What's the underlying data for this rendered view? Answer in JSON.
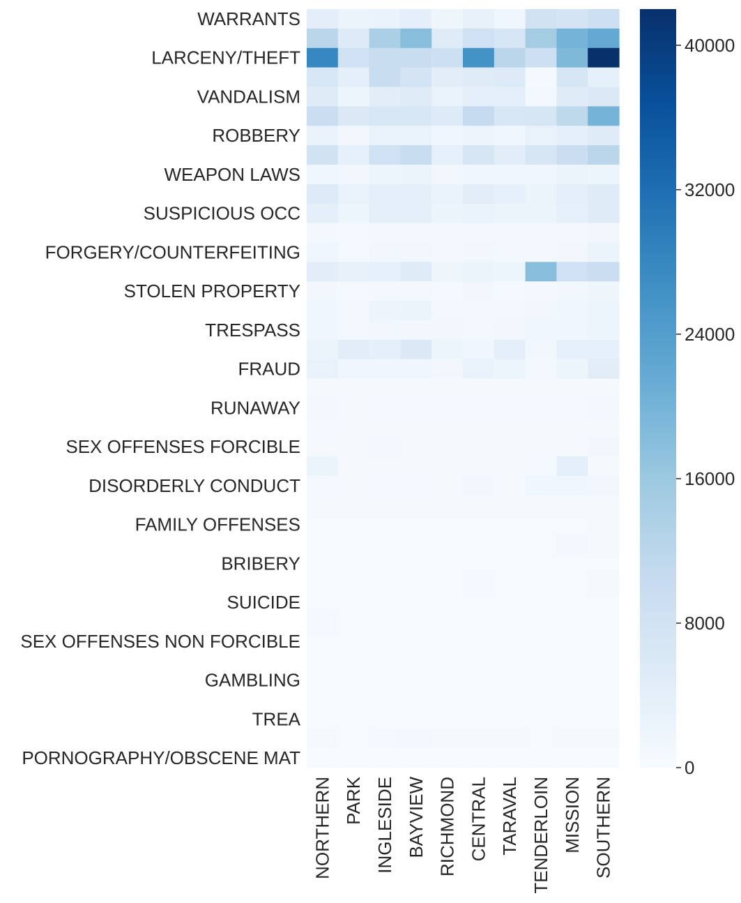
{
  "chart_data": {
    "type": "heatmap",
    "title": "",
    "xlabel": "",
    "ylabel": "",
    "colormap": "Blues",
    "colorbar": {
      "min": 0,
      "max": 42000,
      "ticks": [
        0,
        8000,
        16000,
        24000,
        32000,
        40000
      ],
      "tick_labels": [
        "0",
        "8000",
        "16000",
        "24000",
        "32000",
        "40000"
      ]
    },
    "x_labels": [
      "NORTHERN",
      "PARK",
      "INGLESIDE",
      "BAYVIEW",
      "RICHMOND",
      "CENTRAL",
      "TARAVAL",
      "TENDERLOIN",
      "MISSION",
      "SOUTHERN"
    ],
    "y_labels": [
      "WARRANTS",
      "",
      "LARCENY/THEFT",
      "",
      "VANDALISM",
      "",
      "ROBBERY",
      "",
      "WEAPON LAWS",
      "",
      "SUSPICIOUS OCC",
      "",
      "FORGERY/COUNTERFEITING",
      "",
      "STOLEN PROPERTY",
      "",
      "TRESPASS",
      "",
      "FRAUD",
      "",
      "RUNAWAY",
      "",
      "SEX OFFENSES FORCIBLE",
      "",
      "DISORDERLY CONDUCT",
      "",
      "FAMILY OFFENSES",
      "",
      "BRIBERY",
      "",
      "SUICIDE",
      "",
      "SEX OFFENSES NON FORCIBLE",
      "",
      "GAMBLING",
      "",
      "TREA",
      "",
      "PORNOGRAPHY/OBSCENE MAT"
    ],
    "values": [
      [
        4200,
        2500,
        2800,
        3800,
        1800,
        3200,
        1500,
        8000,
        7500,
        9000
      ],
      [
        12000,
        5500,
        14000,
        18000,
        5000,
        8500,
        7000,
        15000,
        20000,
        22000
      ],
      [
        28000,
        8500,
        10000,
        10000,
        9000,
        26000,
        12000,
        9000,
        19000,
        42000
      ],
      [
        6500,
        4000,
        10000,
        7500,
        4500,
        5000,
        5500,
        800,
        7000,
        3500
      ],
      [
        5000,
        2000,
        4500,
        5000,
        3000,
        4000,
        4000,
        1000,
        5000,
        6000
      ],
      [
        9500,
        6000,
        6500,
        6500,
        5500,
        10500,
        6500,
        7000,
        11500,
        20000
      ],
      [
        3000,
        1200,
        3000,
        3000,
        1500,
        2200,
        1500,
        3000,
        4000,
        5000
      ],
      [
        8000,
        3500,
        8500,
        10000,
        3500,
        7000,
        4500,
        7000,
        9500,
        12000
      ],
      [
        1500,
        1200,
        2000,
        2500,
        1200,
        1500,
        1500,
        1500,
        2500,
        2000
      ],
      [
        5500,
        3000,
        4000,
        4000,
        3000,
        4500,
        3500,
        2500,
        4000,
        5000
      ],
      [
        4000,
        2000,
        4000,
        4000,
        2500,
        3000,
        2500,
        2500,
        3500,
        5000
      ],
      [
        1000,
        800,
        1000,
        1000,
        1000,
        1000,
        900,
        900,
        1000,
        1200
      ],
      [
        1500,
        800,
        1200,
        1200,
        900,
        1200,
        900,
        900,
        1200,
        2500
      ],
      [
        4500,
        3200,
        3500,
        5000,
        1800,
        2500,
        2000,
        18000,
        8500,
        9500
      ],
      [
        1200,
        800,
        1000,
        1000,
        800,
        1200,
        800,
        900,
        1200,
        1800
      ],
      [
        1500,
        1000,
        2200,
        2500,
        1000,
        1000,
        900,
        1200,
        1500,
        2000
      ],
      [
        1500,
        1000,
        1200,
        1200,
        1300,
        1000,
        1200,
        1500,
        1500,
        2000
      ],
      [
        2500,
        4500,
        3800,
        6000,
        2000,
        1500,
        4000,
        1200,
        3500,
        3500
      ],
      [
        3000,
        1500,
        1500,
        1500,
        1200,
        3000,
        2000,
        1000,
        2000,
        4500
      ],
      [
        700,
        500,
        700,
        700,
        500,
        700,
        500,
        500,
        700,
        700
      ],
      [
        1000,
        700,
        800,
        800,
        800,
        800,
        800,
        800,
        800,
        1000
      ],
      [
        800,
        500,
        600,
        600,
        500,
        500,
        500,
        500,
        500,
        500
      ],
      [
        700,
        500,
        1000,
        700,
        500,
        600,
        500,
        600,
        700,
        1200
      ],
      [
        2500,
        500,
        500,
        500,
        500,
        500,
        500,
        800,
        4000,
        700
      ],
      [
        800,
        500,
        800,
        800,
        600,
        1200,
        600,
        1500,
        1500,
        1200
      ],
      [
        500,
        500,
        700,
        700,
        500,
        500,
        500,
        500,
        600,
        700
      ],
      [
        300,
        300,
        300,
        300,
        300,
        300,
        300,
        300,
        300,
        600
      ],
      [
        300,
        300,
        300,
        300,
        300,
        300,
        300,
        300,
        1000,
        700
      ],
      [
        300,
        300,
        300,
        300,
        300,
        300,
        300,
        300,
        300,
        300
      ],
      [
        300,
        300,
        300,
        300,
        300,
        800,
        300,
        300,
        300,
        500
      ],
      [
        300,
        300,
        300,
        300,
        300,
        300,
        300,
        300,
        300,
        300
      ],
      [
        800,
        300,
        300,
        300,
        300,
        300,
        300,
        300,
        300,
        300
      ],
      [
        300,
        300,
        300,
        300,
        300,
        300,
        300,
        300,
        300,
        300
      ],
      [
        300,
        300,
        300,
        300,
        300,
        300,
        300,
        300,
        300,
        300
      ],
      [
        300,
        300,
        300,
        300,
        300,
        300,
        300,
        300,
        300,
        300
      ],
      [
        300,
        300,
        300,
        300,
        300,
        300,
        300,
        300,
        300,
        300
      ],
      [
        300,
        300,
        300,
        300,
        300,
        300,
        300,
        300,
        300,
        300
      ],
      [
        700,
        300,
        800,
        900,
        500,
        600,
        700,
        400,
        500,
        500
      ],
      [
        300,
        300,
        300,
        300,
        300,
        300,
        300,
        300,
        300,
        300
      ]
    ]
  }
}
